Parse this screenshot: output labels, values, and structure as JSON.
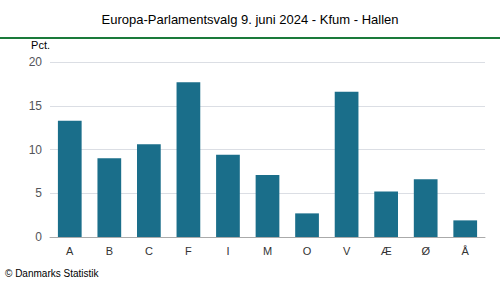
{
  "chart_data": {
    "type": "bar",
    "title": "Europa-Parlamentsvalg 9. juni 2024 - Kfum - Hallen",
    "ylabel": "Pct.",
    "annotations": [
      "© Danmarks Statistik"
    ],
    "categories": [
      "A",
      "B",
      "C",
      "F",
      "I",
      "M",
      "O",
      "V",
      "Æ",
      "Ø",
      "Å"
    ],
    "values": [
      13.3,
      9.0,
      10.6,
      17.7,
      9.4,
      7.1,
      2.7,
      16.6,
      5.2,
      6.6,
      1.9
    ],
    "color": "#1a6e8a",
    "ylim": [
      0,
      20
    ],
    "yticks": [
      0,
      5,
      10,
      15,
      20
    ],
    "grid": true
  }
}
